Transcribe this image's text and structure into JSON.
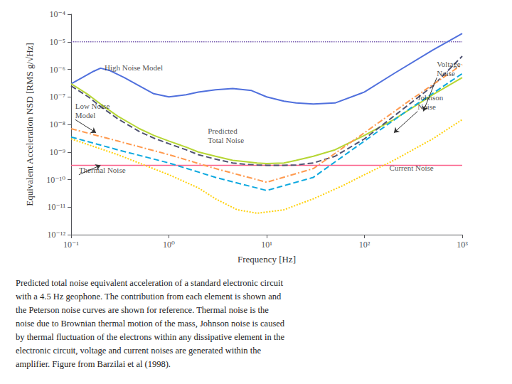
{
  "chart_data": {
    "type": "line",
    "log": true,
    "grid": false,
    "xlabel": "Frequency [Hz]",
    "ylabel": "Equivalent Acceleration NSD [RMS g/√Hz]",
    "background_color": "#ffffff",
    "xlim": [
      0.1,
      1000
    ],
    "xticks": [
      {
        "value": 0.1,
        "label": "10⁻¹"
      },
      {
        "value": 1,
        "label": "10⁰"
      },
      {
        "value": 10,
        "label": "10¹"
      },
      {
        "value": 100,
        "label": "10²"
      },
      {
        "value": 1000,
        "label": "10³"
      }
    ],
    "ylim": [
      1e-12,
      0.0001
    ],
    "yticks": [
      {
        "value": 1e-12,
        "label": "10⁻¹²"
      },
      {
        "value": 1e-11,
        "label": "10⁻¹¹"
      },
      {
        "value": 1e-10,
        "label": "10⁻¹⁰"
      },
      {
        "value": 1e-09,
        "label": "10⁻⁹"
      },
      {
        "value": 1e-08,
        "label": "10⁻⁸"
      },
      {
        "value": 1e-07,
        "label": "10⁻⁷"
      },
      {
        "value": 1e-06,
        "label": "10⁻⁶"
      },
      {
        "value": 1e-05,
        "label": "10⁻⁵"
      },
      {
        "value": 0.0001,
        "label": "10⁻⁴"
      }
    ],
    "series": [
      {
        "type": "line",
        "line_style": "solid",
        "x": [
          0.1,
          0.13,
          0.17,
          0.2,
          0.25,
          0.35,
          0.5,
          0.7,
          1.0,
          1.5,
          2.0,
          3.0,
          4.5,
          7.0,
          10.0,
          15.0,
          20.0,
          30.0,
          50.0,
          100.0,
          200.0,
          500.0,
          1000.0
        ],
        "values": [
          3e-07,
          5e-07,
          8.5e-07,
          1.1e-06,
          9e-07,
          5e-07,
          2.5e-07,
          1.3e-07,
          1e-07,
          1.2e-07,
          1.5e-07,
          1.8e-07,
          2e-07,
          1.7e-07,
          1e-07,
          7e-08,
          6e-08,
          5.5e-08,
          6e-08,
          1.5e-07,
          7e-07,
          5e-06,
          2e-05
        ]
      },
      {
        "type": "line",
        "line_style": "solid",
        "x": [
          0.1,
          0.15,
          0.2,
          0.3,
          0.5,
          0.7,
          1.0,
          1.5,
          2.0,
          3.0,
          4.5,
          6.0,
          8.0,
          10.0,
          15.0,
          20.0,
          30.0,
          50.0,
          100.0,
          200.0,
          500.0,
          1000.0
        ],
        "values": [
          3e-07,
          1.2e-07,
          5.5e-08,
          2e-08,
          7e-09,
          4e-09,
          2.5e-09,
          1.5e-09,
          1e-09,
          7e-10,
          5e-10,
          4.5e-10,
          4e-10,
          3.8e-10,
          4e-10,
          5e-10,
          7e-10,
          1.2e-09,
          4e-09,
          1.5e-08,
          1.2e-07,
          5e-07
        ]
      },
      {
        "type": "line",
        "line_style": "dashed",
        "x": [
          0.1,
          0.15,
          0.2,
          0.3,
          0.5,
          0.7,
          1.0,
          1.5,
          2.0,
          3.0,
          4.5,
          6.0,
          8.0,
          10.0,
          15.0,
          20.0,
          30.0,
          50.0,
          100.0,
          200.0,
          500.0,
          1000.0
        ],
        "values": [
          2.5e-07,
          1e-07,
          4.5e-08,
          1.6e-08,
          5.5e-09,
          3.2e-09,
          2e-09,
          1.2e-09,
          8e-10,
          5.5e-10,
          4e-10,
          3.6e-10,
          3.4e-10,
          3.3e-10,
          3.3e-10,
          3.4e-10,
          4e-10,
          7e-10,
          3e-09,
          2e-08,
          2.5e-07,
          3e-06
        ]
      },
      {
        "type": "line",
        "line_style": "dashdot",
        "x": [
          0.1,
          0.3,
          1.0,
          3.0,
          10.0,
          30.0,
          100.0,
          300.0,
          1000.0
        ],
        "values": [
          7e-09,
          2.5e-09,
          8e-10,
          2.5e-10,
          8e-11,
          2.5e-10,
          5e-09,
          8e-08,
          1.5e-06
        ]
      },
      {
        "type": "line",
        "line_style": "dashed",
        "x": [
          0.1,
          0.3,
          1.0,
          3.0,
          10.0,
          30.0,
          100.0,
          300.0,
          1000.0
        ],
        "values": [
          3.5e-09,
          1.2e-09,
          4e-10,
          1.2e-10,
          4e-11,
          1.2e-10,
          2.5e-09,
          4e-08,
          7e-07
        ]
      },
      {
        "type": "line",
        "line_style": "dotted",
        "x": [
          0.1,
          0.3,
          1.0,
          2.0,
          3.0,
          5.0,
          8.0,
          15.0,
          30.0,
          60.0,
          100.0,
          200.0,
          500.0,
          1000.0
        ],
        "values": [
          3e-09,
          8e-10,
          1.5e-10,
          5e-11,
          2e-11,
          8e-12,
          6e-12,
          8e-12,
          2e-11,
          6e-11,
          1.5e-10,
          5e-10,
          3e-09,
          1.5e-08
        ]
      },
      {
        "type": "hline",
        "line_style": "solid",
        "values": [
          3.3e-10
        ]
      },
      {
        "type": "hline",
        "line_style": "dotted",
        "values": [
          1e-05
        ]
      }
    ],
    "annotations": [
      {
        "text": "High Noise Model",
        "x": 0.22,
        "y": 8e-07
      },
      {
        "text": "Low Noise\nModel",
        "x": 0.11,
        "y": 1.5e-08,
        "arrow_x": 0.18,
        "arrow_y": 5e-09
      },
      {
        "text": "Thermal Noise",
        "x": 0.12,
        "y": 1.5e-10,
        "arrow_x": 0.2,
        "arrow_y": 3.3e-10
      },
      {
        "text": "Predicted\nTotal Noise",
        "x": 2.5,
        "y": 1.8e-09
      },
      {
        "text": "Voltage\nNoise",
        "x": 550,
        "y": 5e-07,
        "arrow_x": 400,
        "arrow_y": 3e-08
      },
      {
        "text": "Johnson\nNoise",
        "x": 350,
        "y": 3e-08,
        "arrow_x": 200,
        "arrow_y": 5e-09
      },
      {
        "text": "Current Noise",
        "x": 180,
        "y": 1.8e-10
      }
    ],
    "caption": "Predicted total noise equivalent acceleration of a standard electronic circuit\nwith a 4.5 Hz geophone. The contribution from each element is shown and\nthe Peterson noise curves are shown for reference. Thermal noise is the\nnoise due to Brownian thermal motion of the mass, Johnson noise is caused\nby thermal fluctuation of the electrons within any dissipative element in the\nelectronic circuit, voltage and current noises are generated within the\namplifier. Figure from Barzilai et al (1998)."
  }
}
